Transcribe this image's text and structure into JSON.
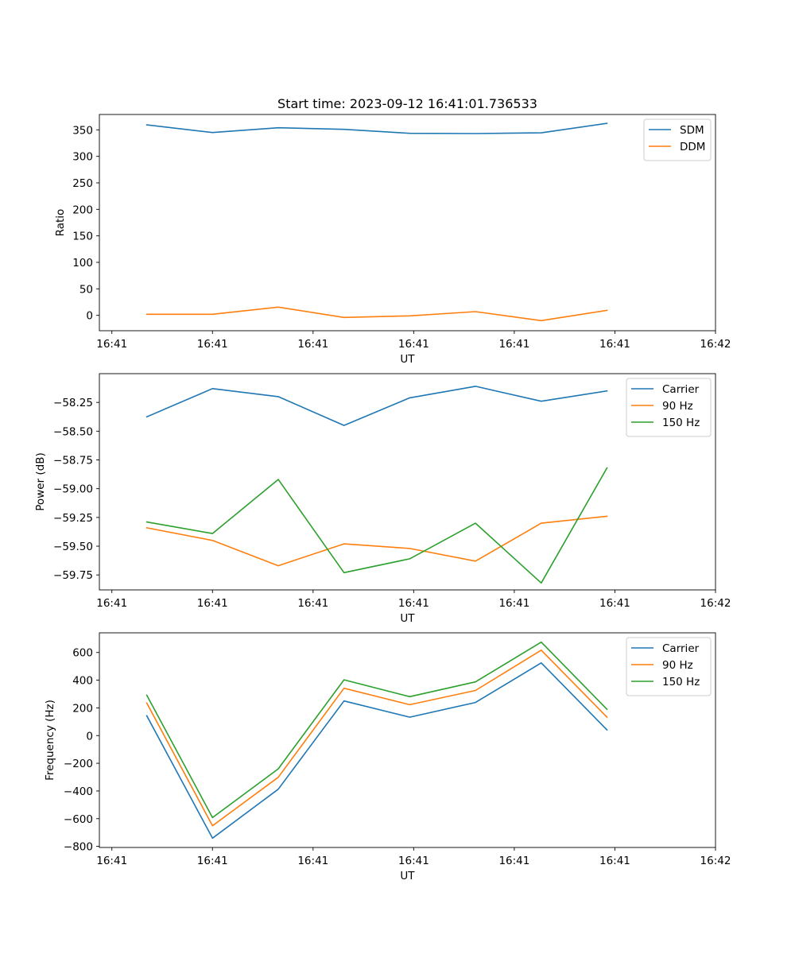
{
  "figure": {
    "title": "Start time: 2023-09-12 16:41:01.736533"
  },
  "chart_data": [
    {
      "type": "line",
      "title": "Start time: 2023-09-12 16:41:01.736533",
      "xlabel": "UT",
      "ylabel": "Ratio",
      "x": [
        1,
        2,
        3,
        4,
        5,
        6,
        7,
        8
      ],
      "xlim": [
        0.28,
        9.65
      ],
      "x_ticks": [
        0.47,
        2.0,
        3.53,
        5.06,
        6.59,
        8.12,
        9.65
      ],
      "x_tick_labels": [
        "16:41",
        "16:41",
        "16:41",
        "16:41",
        "16:41",
        "16:41",
        "16:42"
      ],
      "ylim": [
        -29,
        379
      ],
      "y_ticks": [
        0,
        50,
        100,
        150,
        200,
        250,
        300,
        350
      ],
      "y_tick_labels": [
        "0",
        "50",
        "100",
        "150",
        "200",
        "250",
        "300",
        "350"
      ],
      "grid": false,
      "legend_position": "top-right",
      "series": [
        {
          "name": "SDM",
          "color": "#1f77b4",
          "values": [
            359.3,
            345.0,
            354.0,
            351.0,
            343.4,
            343.0,
            344.3,
            362.3
          ]
        },
        {
          "name": "DDM",
          "color": "#ff7f0e",
          "values": [
            2.0,
            2.0,
            15.5,
            -4.0,
            -1.0,
            7.0,
            -10.0,
            9.5
          ]
        }
      ]
    },
    {
      "type": "line",
      "title": "",
      "xlabel": "UT",
      "ylabel": "Power (dB)",
      "x": [
        1,
        2,
        3,
        4,
        5,
        6,
        7,
        8
      ],
      "xlim": [
        0.28,
        9.65
      ],
      "x_ticks": [
        0.47,
        2.0,
        3.53,
        5.06,
        6.59,
        8.12,
        9.65
      ],
      "x_tick_labels": [
        "16:41",
        "16:41",
        "16:41",
        "16:41",
        "16:41",
        "16:41",
        "16:42"
      ],
      "ylim": [
        -59.88,
        -58.0
      ],
      "y_ticks": [
        -58.25,
        -58.5,
        -58.75,
        -59.0,
        -59.25,
        -59.5,
        -59.75
      ],
      "y_tick_labels": [
        "−58.25",
        "−58.50",
        "−58.75",
        "−59.00",
        "−59.25",
        "−59.50",
        "−59.75"
      ],
      "grid": false,
      "legend_position": "top-right",
      "series": [
        {
          "name": "Carrier",
          "color": "#1f77b4",
          "values": [
            -58.375,
            -58.13,
            -58.2,
            -58.45,
            -58.21,
            -58.11,
            -58.24,
            -58.15
          ]
        },
        {
          "name": "90 Hz",
          "color": "#ff7f0e",
          "values": [
            -59.34,
            -59.45,
            -59.67,
            -59.48,
            -59.52,
            -59.63,
            -59.3,
            -59.24
          ]
        },
        {
          "name": "150 Hz",
          "color": "#2ca02c",
          "values": [
            -59.29,
            -59.39,
            -58.92,
            -59.73,
            -59.61,
            -59.3,
            -59.82,
            -58.82
          ]
        }
      ]
    },
    {
      "type": "line",
      "title": "",
      "xlabel": "UT",
      "ylabel": "Frequency (Hz)",
      "x": [
        1,
        2,
        3,
        4,
        5,
        6,
        7,
        8
      ],
      "xlim": [
        0.28,
        9.65
      ],
      "x_ticks": [
        0.47,
        2.0,
        3.53,
        5.06,
        6.59,
        8.12,
        9.65
      ],
      "x_tick_labels": [
        "16:41",
        "16:41",
        "16:41",
        "16:41",
        "16:41",
        "16:41",
        "16:42"
      ],
      "ylim": [
        -808,
        742
      ],
      "y_ticks": [
        -800,
        -600,
        -400,
        -200,
        0,
        200,
        400,
        600
      ],
      "y_tick_labels": [
        "−800",
        "−600",
        "−400",
        "−200",
        "0",
        "200",
        "400",
        "600"
      ],
      "grid": false,
      "legend_position": "top-right",
      "series": [
        {
          "name": "Carrier",
          "color": "#1f77b4",
          "values": [
            143,
            -741,
            -387,
            250,
            133,
            239,
            525,
            41
          ]
        },
        {
          "name": "90 Hz",
          "color": "#ff7f0e",
          "values": [
            235,
            -651,
            -301,
            342,
            223,
            326,
            617,
            133
          ]
        },
        {
          "name": "150 Hz",
          "color": "#2ca02c",
          "values": [
            292,
            -592,
            -240,
            403,
            281,
            388,
            675,
            190
          ]
        }
      ]
    }
  ]
}
